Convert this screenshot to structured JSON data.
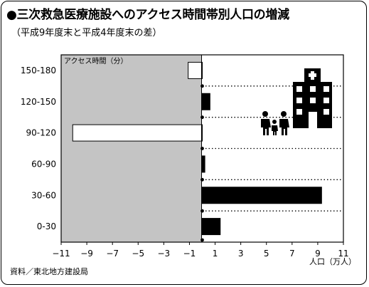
{
  "page": {
    "title": "●三次救急医療施設へのアクセス時間帯別人口の増減",
    "subtitle": "（平成9年度末と平成4年度末の差）",
    "source": "資料／東北地方建設局"
  },
  "chart_data": {
    "type": "bar",
    "orientation": "horizontal",
    "ylabel": "アクセス時間（分）",
    "xlabel": "人口（万人）",
    "categories": [
      "150-180",
      "120-150",
      "90-120",
      "60-90",
      "30-60",
      "0-30"
    ],
    "values": [
      -1.1,
      0.6,
      -10.1,
      0.2,
      9.3,
      1.4
    ],
    "xlim": [
      -11,
      11
    ],
    "xticks": [
      -11,
      -9,
      -7,
      -5,
      -3,
      -1,
      1,
      3,
      5,
      7,
      9,
      11
    ],
    "xtick_labels": [
      "−11",
      "−9",
      "−7",
      "−5",
      "−3",
      "−1",
      "1",
      "3",
      "5",
      "7",
      "9",
      "11"
    ],
    "negative_region_shaded": true,
    "gridlines": "dotted, horizontal, between categories",
    "colors": {
      "positive_bar": "#000000",
      "negative_bar": "#ffffff",
      "negative_region": "#c4c4c4"
    },
    "icons": [
      "hospital-icon",
      "family-icon"
    ]
  }
}
